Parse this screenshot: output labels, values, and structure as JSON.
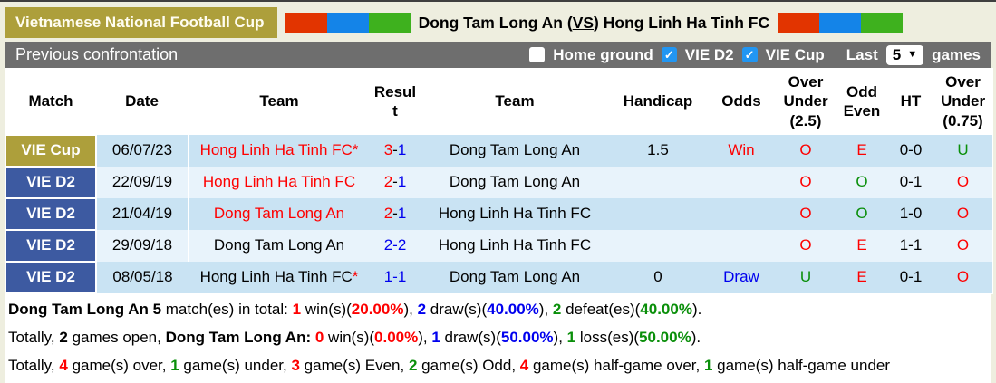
{
  "header": {
    "tournament": "Vietnamese National Football Cup",
    "title_prefix": "Dong Tam Long An (",
    "title_vs": "VS",
    "title_suffix": ") Hong Linh Ha Tinh FC",
    "flag_colors": [
      "#e23400",
      "#1484e8",
      "#3eb11e"
    ]
  },
  "section": {
    "title": "Previous confrontation"
  },
  "filters": {
    "home_ground": {
      "label": "Home ground",
      "checked": false
    },
    "vie_d2": {
      "label": "VIE D2",
      "checked": true
    },
    "vie_cup": {
      "label": "VIE Cup",
      "checked": true
    },
    "last": {
      "label": "Last",
      "value": "5",
      "suffix": "games"
    }
  },
  "colors": {
    "league_cup_bg": "#ad9f3b",
    "league_d2_bg": "#3d5aa1",
    "row_odd_bg": "#c9e3f3",
    "row_even_bg": "#e8f3fb",
    "accent_red": "#fe0000",
    "accent_blue": "#0000ee",
    "accent_green": "#0a8f0a",
    "bar_gray": "#6e6e6e"
  },
  "table": {
    "headers": [
      "Match",
      "Date",
      "Team",
      "Result",
      "Team",
      "Handicap",
      "Odds",
      "Over Under (2.5)",
      "Odd Even",
      "HT",
      "Over Under (0.75)"
    ],
    "rows": [
      {
        "league": "VIE Cup",
        "league_class": "cup",
        "stripe": "odd",
        "date": "06/07/23",
        "team1": {
          "name": "Hong Linh Ha Tinh FC",
          "star": "*",
          "color": "red",
          "star_color": "red"
        },
        "result": {
          "s1": "3",
          "c1": "red",
          "dash_color": "black",
          "s2": "1",
          "c2": "blue"
        },
        "team2": {
          "name": "Dong Tam Long An",
          "star": "",
          "color": "black",
          "star_color": "red"
        },
        "handicap": "1.5",
        "odds": {
          "text": "Win",
          "color": "red"
        },
        "over_under_25": {
          "text": "O",
          "color": "red"
        },
        "odd_even": {
          "text": "E",
          "color": "red"
        },
        "ht": "0-0",
        "over_under_075": {
          "text": "U",
          "color": "green"
        }
      },
      {
        "league": "VIE D2",
        "league_class": "d2",
        "stripe": "even",
        "date": "22/09/19",
        "team1": {
          "name": "Hong Linh Ha Tinh FC",
          "star": "",
          "color": "red",
          "star_color": "red"
        },
        "result": {
          "s1": "2",
          "c1": "red",
          "dash_color": "black",
          "s2": "1",
          "c2": "blue"
        },
        "team2": {
          "name": "Dong Tam Long An",
          "star": "",
          "color": "black",
          "star_color": "red"
        },
        "handicap": "",
        "odds": {
          "text": "",
          "color": "black"
        },
        "over_under_25": {
          "text": "O",
          "color": "red"
        },
        "odd_even": {
          "text": "O",
          "color": "green"
        },
        "ht": "0-1",
        "over_under_075": {
          "text": "O",
          "color": "red"
        }
      },
      {
        "league": "VIE D2",
        "league_class": "d2",
        "stripe": "odd",
        "date": "21/04/19",
        "team1": {
          "name": "Dong Tam Long An",
          "star": "",
          "color": "red",
          "star_color": "red"
        },
        "result": {
          "s1": "2",
          "c1": "red",
          "dash_color": "black",
          "s2": "1",
          "c2": "blue"
        },
        "team2": {
          "name": "Hong Linh Ha Tinh FC",
          "star": "",
          "color": "black",
          "star_color": "red"
        },
        "handicap": "",
        "odds": {
          "text": "",
          "color": "black"
        },
        "over_under_25": {
          "text": "O",
          "color": "red"
        },
        "odd_even": {
          "text": "O",
          "color": "green"
        },
        "ht": "1-0",
        "over_under_075": {
          "text": "O",
          "color": "red"
        }
      },
      {
        "league": "VIE D2",
        "league_class": "d2",
        "stripe": "even",
        "date": "29/09/18",
        "team1": {
          "name": "Dong Tam Long An",
          "star": "",
          "color": "black",
          "star_color": "red"
        },
        "result": {
          "s1": "2",
          "c1": "blue",
          "dash_color": "blue",
          "s2": "2",
          "c2": "blue"
        },
        "team2": {
          "name": "Hong Linh Ha Tinh FC",
          "star": "",
          "color": "black",
          "star_color": "red"
        },
        "handicap": "",
        "odds": {
          "text": "",
          "color": "black"
        },
        "over_under_25": {
          "text": "O",
          "color": "red"
        },
        "odd_even": {
          "text": "E",
          "color": "red"
        },
        "ht": "1-1",
        "over_under_075": {
          "text": "O",
          "color": "red"
        }
      },
      {
        "league": "VIE D2",
        "league_class": "d2",
        "stripe": "odd",
        "date": "08/05/18",
        "team1": {
          "name": "Hong Linh Ha Tinh FC",
          "star": "*",
          "color": "black",
          "star_color": "red"
        },
        "result": {
          "s1": "1",
          "c1": "blue",
          "dash_color": "blue",
          "s2": "1",
          "c2": "blue"
        },
        "team2": {
          "name": "Dong Tam Long An",
          "star": "",
          "color": "black",
          "star_color": "red"
        },
        "handicap": "0",
        "odds": {
          "text": "Draw",
          "color": "blue"
        },
        "over_under_25": {
          "text": "U",
          "color": "green"
        },
        "odd_even": {
          "text": "E",
          "color": "red"
        },
        "ht": "0-1",
        "over_under_075": {
          "text": "O",
          "color": "red"
        }
      }
    ]
  },
  "summary": {
    "lines": [
      [
        {
          "t": "Dong Tam Long An 5",
          "b": 1,
          "c": "black"
        },
        {
          "t": " match(es) in total: ",
          "c": "black"
        },
        {
          "t": "1",
          "b": 1,
          "c": "red"
        },
        {
          "t": " win(s)(",
          "c": "black"
        },
        {
          "t": "20.00%",
          "b": 1,
          "c": "red"
        },
        {
          "t": "), ",
          "c": "black"
        },
        {
          "t": "2",
          "b": 1,
          "c": "blue"
        },
        {
          "t": " draw(s)(",
          "c": "black"
        },
        {
          "t": "40.00%",
          "b": 1,
          "c": "blue"
        },
        {
          "t": "), ",
          "c": "black"
        },
        {
          "t": "2",
          "b": 1,
          "c": "green"
        },
        {
          "t": " defeat(es)(",
          "c": "black"
        },
        {
          "t": "40.00%",
          "b": 1,
          "c": "green"
        },
        {
          "t": ").",
          "c": "black"
        }
      ],
      [
        {
          "t": "Totally, ",
          "c": "black"
        },
        {
          "t": "2",
          "b": 1,
          "c": "black"
        },
        {
          "t": " games open, ",
          "c": "black"
        },
        {
          "t": "Dong Tam Long An: ",
          "b": 1,
          "c": "black"
        },
        {
          "t": "0",
          "b": 1,
          "c": "red"
        },
        {
          "t": " win(s)(",
          "c": "black"
        },
        {
          "t": "0.00%",
          "b": 1,
          "c": "red"
        },
        {
          "t": "), ",
          "c": "black"
        },
        {
          "t": "1",
          "b": 1,
          "c": "blue"
        },
        {
          "t": " draw(s)(",
          "c": "black"
        },
        {
          "t": "50.00%",
          "b": 1,
          "c": "blue"
        },
        {
          "t": "), ",
          "c": "black"
        },
        {
          "t": "1",
          "b": 1,
          "c": "green"
        },
        {
          "t": " loss(es)(",
          "c": "black"
        },
        {
          "t": "50.00%",
          "b": 1,
          "c": "green"
        },
        {
          "t": ").",
          "c": "black"
        }
      ],
      [
        {
          "t": "Totally, ",
          "c": "black"
        },
        {
          "t": "4",
          "b": 1,
          "c": "red"
        },
        {
          "t": " game(s) over, ",
          "c": "black"
        },
        {
          "t": "1",
          "b": 1,
          "c": "green"
        },
        {
          "t": " game(s) under, ",
          "c": "black"
        },
        {
          "t": "3",
          "b": 1,
          "c": "red"
        },
        {
          "t": " game(s) Even, ",
          "c": "black"
        },
        {
          "t": "2",
          "b": 1,
          "c": "green"
        },
        {
          "t": " game(s) Odd, ",
          "c": "black"
        },
        {
          "t": "4",
          "b": 1,
          "c": "red"
        },
        {
          "t": " game(s) half-game over, ",
          "c": "black"
        },
        {
          "t": "1",
          "b": 1,
          "c": "green"
        },
        {
          "t": " game(s) half-game under",
          "c": "black"
        }
      ]
    ]
  }
}
